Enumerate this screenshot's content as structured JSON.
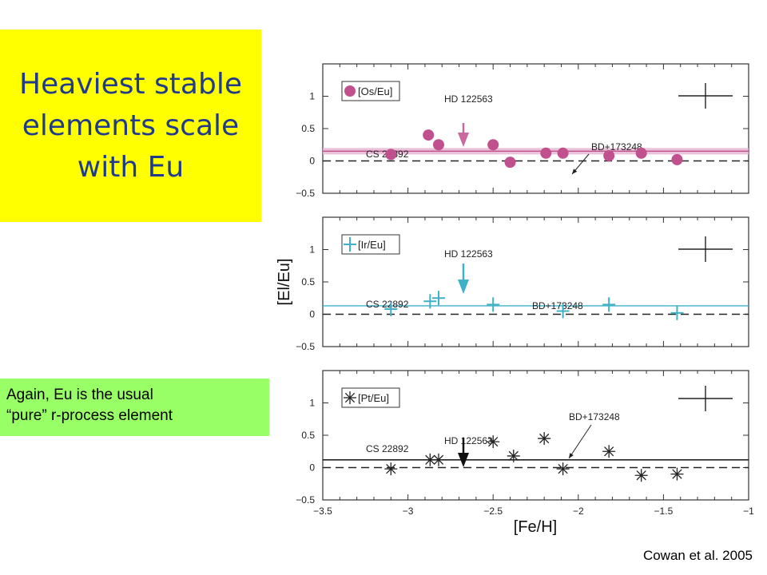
{
  "slide": {
    "title_lines": [
      "Heaviest stable",
      "elements scale",
      "with Eu"
    ],
    "note_lines": [
      "Again, Eu is the usual",
      "“pure” r-process element"
    ],
    "credit": "Cowan et al. 2005"
  },
  "chart_data": [
    {
      "type": "scatter",
      "xlabel": "[Fe/H]",
      "ylabel": "[El/Eu]",
      "xlim": [
        -3.5,
        -1
      ],
      "ylim": [
        -0.5,
        1.5
      ],
      "y_ticks": [
        "1",
        "0.5",
        "0",
        "−0.5"
      ],
      "legend": "[Os/Eu]",
      "marker": "circle",
      "color": "#c0508e",
      "mean_line_y": 0.15,
      "series": [
        {
          "x": [
            -3.1,
            -2.88,
            -2.82,
            -2.5,
            -2.4,
            -2.19,
            -2.09,
            -1.82,
            -1.63,
            -1.42
          ],
          "y": [
            0.1,
            0.4,
            0.25,
            0.25,
            -0.02,
            0.12,
            0.12,
            0.08,
            0.12,
            0.02
          ]
        }
      ],
      "annotations": [
        "HD 122563",
        "CS 22892",
        "BD+173248"
      ]
    },
    {
      "type": "scatter",
      "xlabel": "[Fe/H]",
      "ylabel": "[El/Eu]",
      "xlim": [
        -3.5,
        -1
      ],
      "ylim": [
        -0.5,
        1.5
      ],
      "y_ticks": [
        "1",
        "0.5",
        "0",
        "−0.5"
      ],
      "legend": "[Ir/Eu]",
      "marker": "plus",
      "color": "#3fb1c6",
      "mean_line_y": 0.13,
      "series": [
        {
          "x": [
            -3.1,
            -2.87,
            -2.82,
            -2.5,
            -2.09,
            -1.82,
            -1.42
          ],
          "y": [
            0.08,
            0.2,
            0.25,
            0.15,
            0.05,
            0.15,
            0.02
          ]
        }
      ],
      "annotations": [
        "HD 122563",
        "CS 22892",
        "BD+173248"
      ]
    },
    {
      "type": "scatter",
      "xlabel": "[Fe/H]",
      "ylabel": "[El/Eu]",
      "xlim": [
        -3.5,
        -1
      ],
      "ylim": [
        -0.5,
        1.5
      ],
      "y_ticks": [
        "1",
        "0.5",
        "0",
        "−0.5"
      ],
      "x_ticks": [
        "−3.5",
        "−3",
        "−2.5",
        "−2",
        "−1.5",
        "−1"
      ],
      "legend": "[Pt/Eu]",
      "marker": "asterisk",
      "color": "#222222",
      "mean_line_y": 0.12,
      "series": [
        {
          "x": [
            -3.1,
            -2.87,
            -2.82,
            -2.5,
            -2.38,
            -2.2,
            -2.09,
            -1.82,
            -1.63,
            -1.42
          ],
          "y": [
            -0.02,
            0.12,
            0.12,
            0.4,
            0.18,
            0.45,
            -0.02,
            0.25,
            -0.12,
            -0.1
          ]
        }
      ],
      "annotations": [
        "HD 122563",
        "CS 22892",
        "BD+173248"
      ]
    }
  ]
}
